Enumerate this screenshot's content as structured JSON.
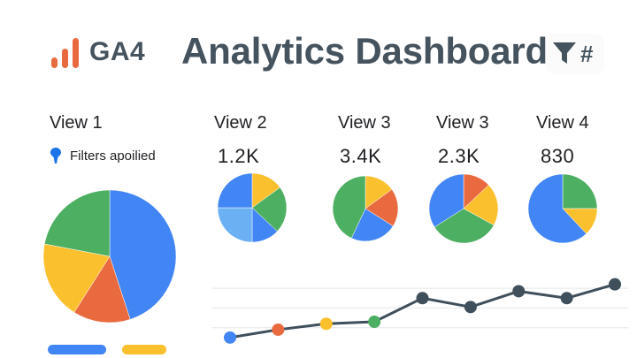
{
  "header": {
    "logo_text": "GA4",
    "title": "Analytics Dashboard",
    "icons": [
      "bar-chart-logo-icon",
      "filter-funnel-icon",
      "hash-icon"
    ],
    "hash_glyph": "#"
  },
  "filters": {
    "label": "Filters apoilied"
  },
  "colors": {
    "blue": "#4285f4",
    "light_blue": "#6ab0f3",
    "red": "#ea6a3f",
    "yellow": "#fbc02d",
    "green": "#4caf61",
    "line": "#3f4f5b",
    "text": "#45535e"
  },
  "views": [
    {
      "label": "View 1",
      "value": ""
    },
    {
      "label": "View 2",
      "value": "1.2K"
    },
    {
      "label": "View 3",
      "value": "3.4K"
    },
    {
      "label": "View 3",
      "value": "2.3K"
    },
    {
      "label": "View 4",
      "value": "830"
    }
  ],
  "chart_data": [
    {
      "type": "pie",
      "name": "View 1",
      "categories": [
        "blue",
        "red",
        "yellow",
        "green"
      ],
      "values": [
        45,
        14,
        19,
        22
      ]
    },
    {
      "type": "pie",
      "name": "View 2",
      "categories": [
        "yellow",
        "green",
        "blue",
        "light-blue",
        "blue-2"
      ],
      "values": [
        15,
        22,
        13,
        25,
        25
      ]
    },
    {
      "type": "pie",
      "name": "View 3",
      "categories": [
        "yellow",
        "red",
        "blue",
        "green"
      ],
      "values": [
        15,
        19,
        23,
        43
      ]
    },
    {
      "type": "pie",
      "name": "View 3 (2.3K)",
      "categories": [
        "red",
        "yellow",
        "green",
        "blue"
      ],
      "values": [
        13,
        20,
        33,
        34
      ]
    },
    {
      "type": "pie",
      "name": "View 4",
      "categories": [
        "green",
        "yellow",
        "blue"
      ],
      "values": [
        25,
        13,
        62
      ]
    },
    {
      "type": "line",
      "x": [
        1,
        2,
        3,
        4,
        5,
        6,
        7,
        8,
        9
      ],
      "values": [
        1.0,
        1.8,
        2.4,
        2.6,
        5.0,
        4.1,
        5.7,
        5.0,
        6.4
      ],
      "point_colors": [
        "#4285f4",
        "#ea6a3f",
        "#fbc02d",
        "#4caf61",
        "#3f4f5b",
        "#3f4f5b",
        "#3f4f5b",
        "#3f4f5b",
        "#3f4f5b"
      ],
      "ylim": [
        0,
        7
      ],
      "grid": true
    }
  ],
  "legend_chips": [
    "blue",
    "yellow"
  ]
}
